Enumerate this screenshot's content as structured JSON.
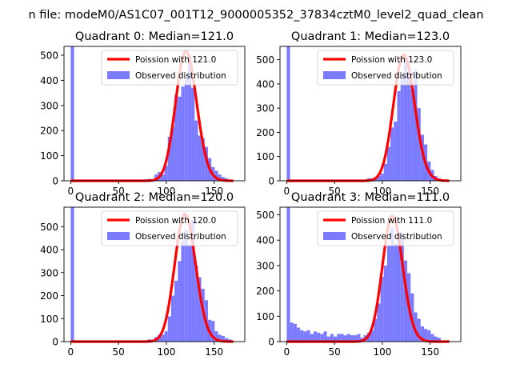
{
  "suptitle": "n file: modeM0/AS1C07_001T12_9000005352_37834cztM0_level2_quad_clean",
  "colors": {
    "observed": "#7b7bff",
    "poisson": "#ff0000",
    "axis": "#000000"
  },
  "legend_position": "top-right",
  "chart_data": [
    {
      "type": "bar",
      "title": "Quadrant 0: Median=121.0",
      "median": 121.0,
      "xlim": [
        -7,
        182
      ],
      "ylim": [
        0,
        535
      ],
      "xticks": [
        0,
        50,
        100,
        150
      ],
      "yticks": [
        0,
        100,
        200,
        300,
        400,
        500
      ],
      "legend": [
        "Poission with 121.0",
        "Observed distribution"
      ],
      "bin_width": 3.5,
      "bins": [
        {
          "x": 0,
          "y": 535
        },
        {
          "x": 77,
          "y": 6
        },
        {
          "x": 80.5,
          "y": 8
        },
        {
          "x": 84,
          "y": 5
        },
        {
          "x": 87.5,
          "y": 25
        },
        {
          "x": 91,
          "y": 35
        },
        {
          "x": 94.5,
          "y": 25
        },
        {
          "x": 98,
          "y": 60
        },
        {
          "x": 101.5,
          "y": 175
        },
        {
          "x": 105,
          "y": 215
        },
        {
          "x": 108.5,
          "y": 340
        },
        {
          "x": 112,
          "y": 335
        },
        {
          "x": 115.5,
          "y": 375
        },
        {
          "x": 119,
          "y": 405
        },
        {
          "x": 122.5,
          "y": 500
        },
        {
          "x": 126,
          "y": 370
        },
        {
          "x": 129.5,
          "y": 240
        },
        {
          "x": 133,
          "y": 180
        },
        {
          "x": 136.5,
          "y": 170
        },
        {
          "x": 140,
          "y": 135
        },
        {
          "x": 143.5,
          "y": 90
        },
        {
          "x": 147,
          "y": 55
        },
        {
          "x": 150.5,
          "y": 40
        },
        {
          "x": 154,
          "y": 25
        },
        {
          "x": 157.5,
          "y": 15
        },
        {
          "x": 161,
          "y": 10
        }
      ],
      "poisson": {
        "lambda": 121.0,
        "x_range": [
          0,
          170
        ],
        "peak": 515
      }
    },
    {
      "type": "bar",
      "title": "Quadrant 1: Median=123.0",
      "median": 123.0,
      "xlim": [
        -7,
        182
      ],
      "ylim": [
        0,
        555
      ],
      "xticks": [
        0,
        50,
        100,
        150
      ],
      "yticks": [
        0,
        100,
        200,
        300,
        400,
        500
      ],
      "legend": [
        "Poission with 123.0",
        "Observed distribution"
      ],
      "bin_width": 3.5,
      "bins": [
        {
          "x": 0,
          "y": 555
        },
        {
          "x": 63,
          "y": 4
        },
        {
          "x": 70,
          "y": 5
        },
        {
          "x": 77,
          "y": 5
        },
        {
          "x": 84,
          "y": 10
        },
        {
          "x": 87.5,
          "y": 10
        },
        {
          "x": 91,
          "y": 15
        },
        {
          "x": 94.5,
          "y": 20
        },
        {
          "x": 98,
          "y": 30
        },
        {
          "x": 101.5,
          "y": 70
        },
        {
          "x": 105,
          "y": 140
        },
        {
          "x": 108.5,
          "y": 220
        },
        {
          "x": 112,
          "y": 245
        },
        {
          "x": 115.5,
          "y": 370
        },
        {
          "x": 119,
          "y": 440
        },
        {
          "x": 122.5,
          "y": 510
        },
        {
          "x": 126,
          "y": 450
        },
        {
          "x": 129.5,
          "y": 380
        },
        {
          "x": 133,
          "y": 460
        },
        {
          "x": 136.5,
          "y": 300
        },
        {
          "x": 140,
          "y": 190
        },
        {
          "x": 143.5,
          "y": 150
        },
        {
          "x": 147,
          "y": 80
        },
        {
          "x": 150.5,
          "y": 45
        },
        {
          "x": 154,
          "y": 20
        },
        {
          "x": 157.5,
          "y": 10
        },
        {
          "x": 161,
          "y": 5
        }
      ],
      "poisson": {
        "lambda": 123.0,
        "x_range": [
          0,
          170
        ],
        "peak": 520
      }
    },
    {
      "type": "bar",
      "title": "Quadrant 2: Median=120.0",
      "median": 120.0,
      "xlim": [
        -7,
        182
      ],
      "ylim": [
        0,
        585
      ],
      "xticks": [
        0,
        50,
        100,
        150
      ],
      "yticks": [
        0,
        100,
        200,
        300,
        400,
        500
      ],
      "legend": [
        "Poission with 120.0",
        "Observed distribution"
      ],
      "bin_width": 3.5,
      "bins": [
        {
          "x": 0,
          "y": 585
        },
        {
          "x": 73.5,
          "y": 5
        },
        {
          "x": 80.5,
          "y": 10
        },
        {
          "x": 87.5,
          "y": 20
        },
        {
          "x": 91,
          "y": 30
        },
        {
          "x": 94.5,
          "y": 30
        },
        {
          "x": 98,
          "y": 45
        },
        {
          "x": 101.5,
          "y": 110
        },
        {
          "x": 105,
          "y": 200
        },
        {
          "x": 108.5,
          "y": 265
        },
        {
          "x": 112,
          "y": 350
        },
        {
          "x": 115.5,
          "y": 440
        },
        {
          "x": 119,
          "y": 485
        },
        {
          "x": 122.5,
          "y": 420
        },
        {
          "x": 126,
          "y": 530
        },
        {
          "x": 129.5,
          "y": 330
        },
        {
          "x": 133,
          "y": 280
        },
        {
          "x": 136.5,
          "y": 230
        },
        {
          "x": 140,
          "y": 180
        },
        {
          "x": 143.5,
          "y": 95
        },
        {
          "x": 147,
          "y": 90
        },
        {
          "x": 150.5,
          "y": 45
        },
        {
          "x": 154,
          "y": 30
        },
        {
          "x": 157.5,
          "y": 25
        },
        {
          "x": 161,
          "y": 15
        },
        {
          "x": 164.5,
          "y": 10
        }
      ],
      "poisson": {
        "lambda": 120.0,
        "x_range": [
          0,
          170
        ],
        "peak": 555
      }
    },
    {
      "type": "bar",
      "title": "Quadrant 3: Median=111.0",
      "median": 111.0,
      "xlim": [
        -7,
        182
      ],
      "ylim": [
        0,
        530
      ],
      "xticks": [
        0,
        50,
        100,
        150
      ],
      "yticks": [
        0,
        100,
        200,
        300,
        400,
        500
      ],
      "legend": [
        "Poission with 111.0",
        "Observed distribution"
      ],
      "bin_width": 3.5,
      "bins": [
        {
          "x": 0,
          "y": 530
        },
        {
          "x": 3.5,
          "y": 75
        },
        {
          "x": 7,
          "y": 70
        },
        {
          "x": 10.5,
          "y": 55
        },
        {
          "x": 14,
          "y": 45
        },
        {
          "x": 17.5,
          "y": 40
        },
        {
          "x": 21,
          "y": 45
        },
        {
          "x": 24.5,
          "y": 30
        },
        {
          "x": 28,
          "y": 40
        },
        {
          "x": 31.5,
          "y": 35
        },
        {
          "x": 35,
          "y": 30
        },
        {
          "x": 38.5,
          "y": 40
        },
        {
          "x": 42,
          "y": 20
        },
        {
          "x": 45.5,
          "y": 30
        },
        {
          "x": 49,
          "y": 20
        },
        {
          "x": 52.5,
          "y": 30
        },
        {
          "x": 56,
          "y": 30
        },
        {
          "x": 59.5,
          "y": 25
        },
        {
          "x": 63,
          "y": 30
        },
        {
          "x": 66.5,
          "y": 25
        },
        {
          "x": 70,
          "y": 25
        },
        {
          "x": 73.5,
          "y": 30
        },
        {
          "x": 77,
          "y": 15
        },
        {
          "x": 80.5,
          "y": 25
        },
        {
          "x": 84,
          "y": 35
        },
        {
          "x": 87.5,
          "y": 45
        },
        {
          "x": 91,
          "y": 90
        },
        {
          "x": 94.5,
          "y": 150
        },
        {
          "x": 98,
          "y": 255
        },
        {
          "x": 101.5,
          "y": 300
        },
        {
          "x": 105,
          "y": 380
        },
        {
          "x": 108.5,
          "y": 450
        },
        {
          "x": 112,
          "y": 385
        },
        {
          "x": 115.5,
          "y": 430
        },
        {
          "x": 119,
          "y": 425
        },
        {
          "x": 122.5,
          "y": 320
        },
        {
          "x": 126,
          "y": 270
        },
        {
          "x": 129.5,
          "y": 190
        },
        {
          "x": 133,
          "y": 115
        },
        {
          "x": 136.5,
          "y": 90
        },
        {
          "x": 140,
          "y": 60
        },
        {
          "x": 143.5,
          "y": 50
        },
        {
          "x": 147,
          "y": 45
        },
        {
          "x": 150.5,
          "y": 30
        },
        {
          "x": 154,
          "y": 20
        },
        {
          "x": 157.5,
          "y": 15
        }
      ],
      "poisson": {
        "lambda": 111.0,
        "x_range": [
          0,
          170
        ],
        "peak": 495
      }
    }
  ]
}
